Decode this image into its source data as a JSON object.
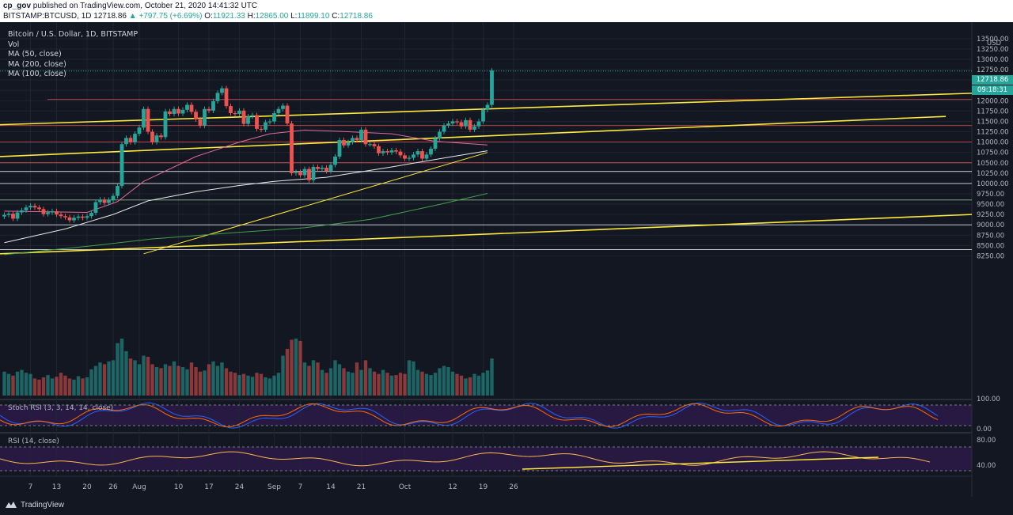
{
  "header": {
    "published_line": "published on TradingView.com, October 21, 2020 14:41:32 UTC",
    "user": "cp_gov",
    "symbol": "BITSTAMP:BTCUSD, 1D",
    "last_price": "12718.86",
    "change": "▲ +797.75 (+6.69%)",
    "o_label": "O:",
    "o": "11921.33",
    "h_label": "H:",
    "h": "12865.00",
    "l_label": "L:",
    "l": "11899.10",
    "c_label": "C:",
    "c": "12718.86"
  },
  "legend": {
    "title": "Bitcoin / U.S. Dollar, 1D, BITSTAMP",
    "vol": "Vol",
    "ma50": "MA (50, close)",
    "ma200": "MA (200, close)",
    "ma100": "MA (100, close)"
  },
  "price_axis": {
    "unit": "USD",
    "ticks": [
      "13500.00",
      "13250.00",
      "13000.00",
      "12750.00",
      "12500.00",
      "12250.00",
      "12000.00",
      "11750.00",
      "11500.00",
      "11250.00",
      "11000.00",
      "10750.00",
      "10500.00",
      "10250.00",
      "10000.00",
      "9750.00",
      "9500.00",
      "9250.00",
      "9000.00",
      "8750.00",
      "8500.00",
      "8250.00"
    ],
    "tick_values": [
      13500,
      13250,
      13000,
      12750,
      12500,
      12250,
      12000,
      11750,
      11500,
      11250,
      11000,
      10750,
      10500,
      10250,
      10000,
      9750,
      9500,
      9250,
      9000,
      8750,
      8500,
      8250
    ],
    "last_tag": "12718.86",
    "countdown_tag": "09:18:31"
  },
  "stoch": {
    "label": "Stoch RSI (3, 3, 14, 14, close)",
    "ticks": [
      "100.00",
      "0.00"
    ]
  },
  "rsi": {
    "label": "RSI (14, close)",
    "ticks": [
      "80.00",
      "40.00"
    ]
  },
  "time_axis": {
    "labels": [
      "7",
      "13",
      "20",
      "26",
      "Aug",
      "10",
      "17",
      "24",
      "Sep",
      "7",
      "14",
      "21",
      "Oct",
      "12",
      "19",
      "26"
    ],
    "label_days": [
      7,
      13,
      20,
      26,
      32,
      41,
      48,
      55,
      63,
      69,
      76,
      83,
      93,
      104,
      111,
      118
    ]
  },
  "footer": {
    "brand": "TradingView"
  },
  "colors": {
    "bg": "#131722",
    "up": "#26a69a",
    "down": "#ef5350",
    "yellow": "#ffeb3b",
    "grid": "#1f2433"
  },
  "chart_data": {
    "type": "candlestick",
    "title": "Bitcoin / U.S. Dollar, 1D, BITSTAMP",
    "ylabel": "USD",
    "ylim": [
      8050,
      13600
    ],
    "x_start_day": 1,
    "closes": [
      9240,
      9270,
      9150,
      9300,
      9350,
      9420,
      9460,
      9420,
      9380,
      9260,
      9300,
      9330,
      9250,
      9210,
      9180,
      9110,
      9170,
      9200,
      9170,
      9210,
      9290,
      9550,
      9610,
      9530,
      9600,
      9700,
      9940,
      10950,
      11100,
      11000,
      11200,
      11350,
      11800,
      11250,
      11000,
      11160,
      11120,
      11740,
      11680,
      11800,
      11690,
      11780,
      11900,
      11730,
      11550,
      11400,
      11800,
      11760,
      11990,
      12190,
      12300,
      11870,
      11700,
      11680,
      11760,
      11440,
      11620,
      11650,
      11320,
      11300,
      11480,
      11500,
      11700,
      11800,
      11880,
      11450,
      10250,
      10280,
      10200,
      10350,
      10080,
      10400,
      10350,
      10380,
      10300,
      10450,
      10650,
      11050,
      10920,
      11000,
      11100,
      11050,
      11300,
      10950,
      10950,
      10900,
      10730,
      10780,
      10750,
      10800,
      10770,
      10680,
      10600,
      10620,
      10700,
      10780,
      10600,
      10700,
      10840,
      11090,
      11250,
      11400,
      11450,
      11500,
      11480,
      11380,
      11530,
      11300,
      11380,
      11500,
      11780,
      11900,
      12730
    ],
    "volume_units": "relative 0-1",
    "volume": [
      0.42,
      0.38,
      0.35,
      0.42,
      0.45,
      0.4,
      0.38,
      0.3,
      0.28,
      0.32,
      0.36,
      0.3,
      0.33,
      0.4,
      0.35,
      0.3,
      0.28,
      0.34,
      0.3,
      0.32,
      0.46,
      0.52,
      0.58,
      0.55,
      0.6,
      0.62,
      0.92,
      1.0,
      0.78,
      0.65,
      0.62,
      0.55,
      0.7,
      0.68,
      0.55,
      0.5,
      0.48,
      0.55,
      0.52,
      0.6,
      0.52,
      0.5,
      0.46,
      0.58,
      0.5,
      0.42,
      0.44,
      0.55,
      0.6,
      0.52,
      0.58,
      0.48,
      0.42,
      0.4,
      0.36,
      0.38,
      0.35,
      0.33,
      0.4,
      0.38,
      0.32,
      0.3,
      0.35,
      0.4,
      0.7,
      0.82,
      0.98,
      1.0,
      0.96,
      0.58,
      0.52,
      0.62,
      0.58,
      0.45,
      0.4,
      0.48,
      0.62,
      0.55,
      0.48,
      0.42,
      0.4,
      0.58,
      0.45,
      0.62,
      0.48,
      0.42,
      0.38,
      0.45,
      0.4,
      0.35,
      0.36,
      0.4,
      0.38,
      0.62,
      0.6,
      0.45,
      0.42,
      0.38,
      0.36,
      0.4,
      0.48,
      0.52,
      0.5,
      0.42,
      0.38,
      0.35,
      0.3,
      0.32,
      0.38,
      0.35,
      0.4,
      0.44,
      0.65
    ],
    "series": [
      {
        "name": "MA (50, close)",
        "points": [
          [
            1,
            9330
          ],
          [
            20,
            9300
          ],
          [
            27,
            9560
          ],
          [
            33,
            10050
          ],
          [
            45,
            10650
          ],
          [
            55,
            11000
          ],
          [
            62,
            11200
          ],
          [
            70,
            11290
          ],
          [
            80,
            11250
          ],
          [
            90,
            11200
          ],
          [
            100,
            11020
          ],
          [
            112,
            10930
          ]
        ]
      },
      {
        "name": "MA (200, close)",
        "points": [
          [
            1,
            8570
          ],
          [
            15,
            8900
          ],
          [
            26,
            9250
          ],
          [
            34,
            9580
          ],
          [
            45,
            9800
          ],
          [
            55,
            9950
          ],
          [
            63,
            10050
          ],
          [
            75,
            10150
          ],
          [
            90,
            10400
          ],
          [
            104,
            10650
          ],
          [
            112,
            10790
          ]
        ]
      },
      {
        "name": "MA (100, close)",
        "points": [
          [
            1,
            8280
          ],
          [
            20,
            8480
          ],
          [
            35,
            8660
          ],
          [
            55,
            8820
          ],
          [
            70,
            8930
          ],
          [
            85,
            9130
          ],
          [
            100,
            9470
          ],
          [
            112,
            9760
          ]
        ]
      }
    ]
  }
}
